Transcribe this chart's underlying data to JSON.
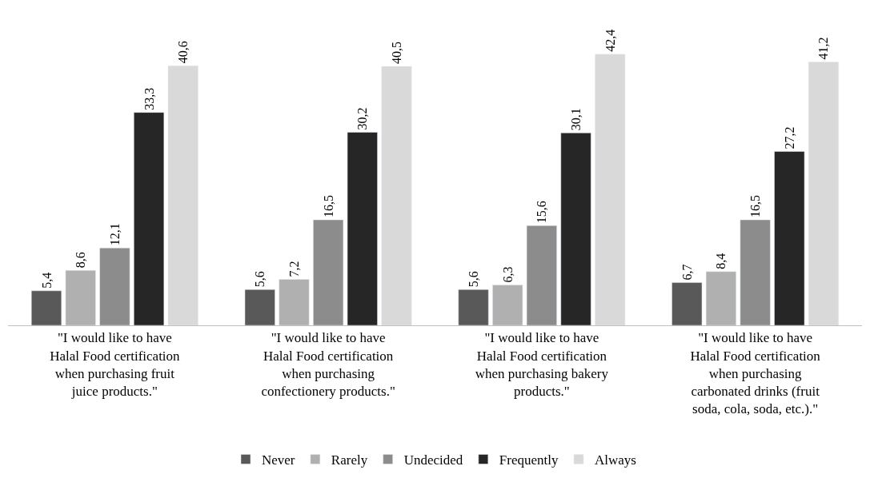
{
  "chart_data": {
    "type": "bar",
    "categories": [
      "\"I would like to have Halal Food certification when purchasing fruit juice products.\"",
      "\"I would like to have Halal Food certification when purchasing confectionery products.\"",
      "\"I would like to have Halal Food certification when purchasing bakery products.\"",
      "\"I would like to have Halal Food certification when purchasing carbonated drinks (fruit soda, cola, soda, etc.).\""
    ],
    "series": [
      {
        "name": "Never",
        "color": "#595959",
        "values": [
          5.4,
          5.6,
          5.6,
          6.7
        ],
        "value_labels": [
          "5,4",
          "5,6",
          "5,6",
          "6,7"
        ]
      },
      {
        "name": "Rarely",
        "color": "#b0b0b0",
        "values": [
          8.6,
          7.2,
          6.3,
          8.4
        ],
        "value_labels": [
          "8,6",
          "7,2",
          "6,3",
          "8,4"
        ]
      },
      {
        "name": "Undecided",
        "color": "#8c8c8c",
        "values": [
          12.1,
          16.5,
          15.6,
          16.5
        ],
        "value_labels": [
          "12,1",
          "16,5",
          "15,6",
          "16,5"
        ]
      },
      {
        "name": "Frequently",
        "color": "#262626",
        "values": [
          33.3,
          30.2,
          30.1,
          27.2
        ],
        "value_labels": [
          "33,3",
          "30,2",
          "30,1",
          "27,2"
        ]
      },
      {
        "name": "Always",
        "color": "#d9d9d9",
        "values": [
          40.6,
          40.5,
          42.4,
          41.2
        ],
        "value_labels": [
          "40,6",
          "40,5",
          "42,4",
          "41,2"
        ]
      }
    ],
    "legend": "bottom"
  }
}
